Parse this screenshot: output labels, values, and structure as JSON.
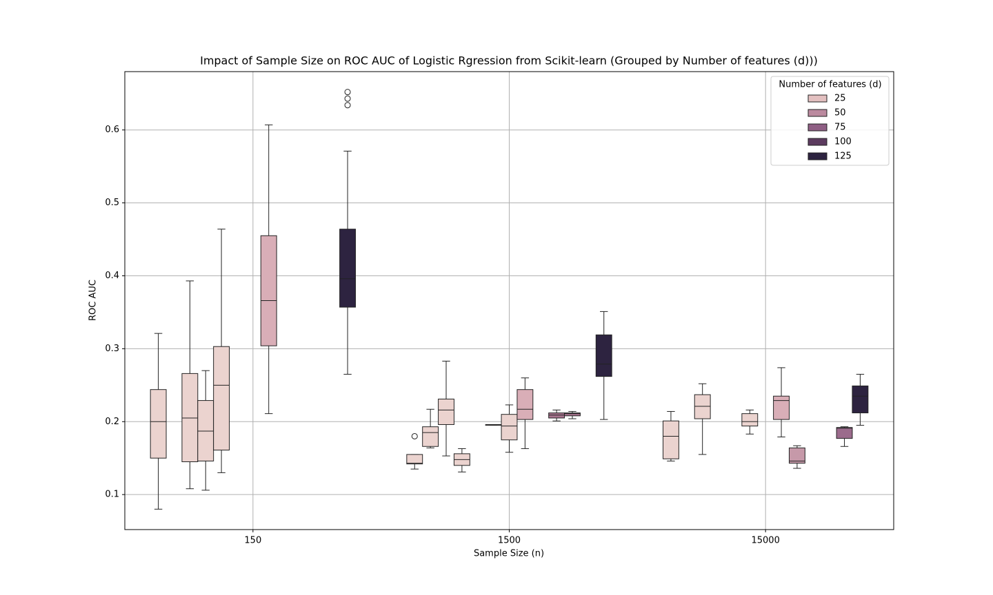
{
  "chart_data": {
    "type": "box",
    "title": "Impact of Sample Size on ROC AUC of Logistic Rgression from Scikit-learn (Grouped by Number of features (d)))",
    "x_label": "Sample Size (n)",
    "y_label": "ROC AUC",
    "categories": [
      "150",
      "1500",
      "15000"
    ],
    "ylim": [
      0.052,
      0.68
    ],
    "yticks": [
      0.1,
      0.2,
      0.3,
      0.4,
      0.5,
      0.6
    ],
    "grid": true,
    "legend": {
      "title": "Number of features (d)",
      "position": "upper right",
      "entries": [
        {
          "label": "25",
          "color": "#e3c0c0"
        },
        {
          "label": "50",
          "color": "#bb8a9f"
        },
        {
          "label": "75",
          "color": "#8f5f84"
        },
        {
          "label": "100",
          "color": "#5c3b5f"
        },
        {
          "label": "125",
          "color": "#2d2340"
        }
      ]
    },
    "series": [
      {
        "color": "#ebd3cf",
        "values": [
          {
            "whislo": 0.08,
            "q1": 0.15,
            "med": 0.2,
            "q3": 0.244,
            "whishi": 0.321,
            "fliers": []
          },
          {
            "whislo": 0.135,
            "q1": 0.142,
            "med": 0.143,
            "q3": 0.155,
            "whishi": 0.155,
            "fliers": [
              0.18
            ]
          },
          {
            "whislo": 0.146,
            "q1": 0.149,
            "med": 0.18,
            "q3": 0.201,
            "whishi": 0.214,
            "fliers": []
          }
        ]
      },
      {
        "color": "#ebd3cf",
        "values": [
          null,
          {
            "whislo": 0.164,
            "q1": 0.166,
            "med": 0.185,
            "q3": 0.193,
            "whishi": 0.217,
            "fliers": []
          },
          null
        ]
      },
      {
        "color": "#ebd3cf",
        "values": [
          {
            "whislo": 0.108,
            "q1": 0.145,
            "med": 0.205,
            "q3": 0.266,
            "whishi": 0.393,
            "fliers": []
          },
          {
            "whislo": 0.153,
            "q1": 0.196,
            "med": 0.216,
            "q3": 0.231,
            "whishi": 0.283,
            "fliers": []
          },
          {
            "whislo": 0.155,
            "q1": 0.204,
            "med": 0.221,
            "q3": 0.237,
            "whishi": 0.252,
            "fliers": []
          }
        ]
      },
      {
        "color": "#ebd3cf",
        "values": [
          {
            "whislo": 0.106,
            "q1": 0.146,
            "med": 0.187,
            "q3": 0.229,
            "whishi": 0.27,
            "fliers": []
          },
          {
            "whislo": 0.131,
            "q1": 0.14,
            "med": 0.148,
            "q3": 0.156,
            "whishi": 0.163,
            "fliers": []
          },
          null
        ]
      },
      {
        "color": "#ebd3cf",
        "values": [
          {
            "whislo": 0.13,
            "q1": 0.161,
            "med": 0.25,
            "q3": 0.303,
            "whishi": 0.464,
            "fliers": []
          },
          null,
          null
        ]
      },
      {
        "color": "#ebd3cf",
        "values": [
          null,
          {
            "whislo": 0.195,
            "q1": 0.195,
            "med": 0.196,
            "q3": 0.196,
            "whishi": 0.196,
            "fliers": []
          },
          {
            "whislo": 0.183,
            "q1": 0.194,
            "med": 0.2,
            "q3": 0.211,
            "whishi": 0.216,
            "fliers": []
          }
        ]
      },
      {
        "color": "#ebd3cf",
        "values": [
          null,
          {
            "whislo": 0.158,
            "q1": 0.175,
            "med": 0.194,
            "q3": 0.21,
            "whishi": 0.223,
            "fliers": []
          },
          null
        ]
      },
      {
        "color": "#d9aeb7",
        "values": [
          {
            "whislo": 0.211,
            "q1": 0.304,
            "med": 0.366,
            "q3": 0.455,
            "whishi": 0.607,
            "fliers": []
          },
          {
            "whislo": 0.163,
            "q1": 0.203,
            "med": 0.217,
            "q3": 0.244,
            "whishi": 0.26,
            "fliers": []
          },
          {
            "whislo": 0.179,
            "q1": 0.203,
            "med": 0.229,
            "q3": 0.235,
            "whishi": 0.274,
            "fliers": []
          }
        ]
      },
      {
        "color": "#c699a9",
        "values": [
          null,
          null,
          {
            "whislo": 0.136,
            "q1": 0.143,
            "med": 0.146,
            "q3": 0.164,
            "whishi": 0.167,
            "fliers": []
          }
        ]
      },
      {
        "color": "#a8758f",
        "values": [
          null,
          {
            "whislo": 0.201,
            "q1": 0.205,
            "med": 0.209,
            "q3": 0.212,
            "whishi": 0.216,
            "fliers": []
          },
          null
        ]
      },
      {
        "color": "#a8758f",
        "values": [
          null,
          {
            "whislo": 0.204,
            "q1": 0.208,
            "med": 0.211,
            "q3": 0.212,
            "whishi": 0.214,
            "fliers": []
          },
          null
        ]
      },
      {
        "color": "#9b6b8c",
        "values": [
          null,
          null,
          {
            "whislo": 0.166,
            "q1": 0.177,
            "med": 0.191,
            "q3": 0.192,
            "whishi": 0.193,
            "fliers": []
          }
        ]
      },
      {
        "color": "#2d2340",
        "values": [
          {
            "whislo": 0.265,
            "q1": 0.357,
            "med": 0.396,
            "q3": 0.464,
            "whishi": 0.571,
            "fliers": [
              0.634,
              0.643,
              0.652
            ]
          },
          {
            "whislo": 0.203,
            "q1": 0.262,
            "med": 0.279,
            "q3": 0.319,
            "whishi": 0.351,
            "fliers": []
          },
          {
            "whislo": 0.195,
            "q1": 0.212,
            "med": 0.235,
            "q3": 0.249,
            "whishi": 0.265,
            "fliers": []
          }
        ]
      }
    ]
  }
}
